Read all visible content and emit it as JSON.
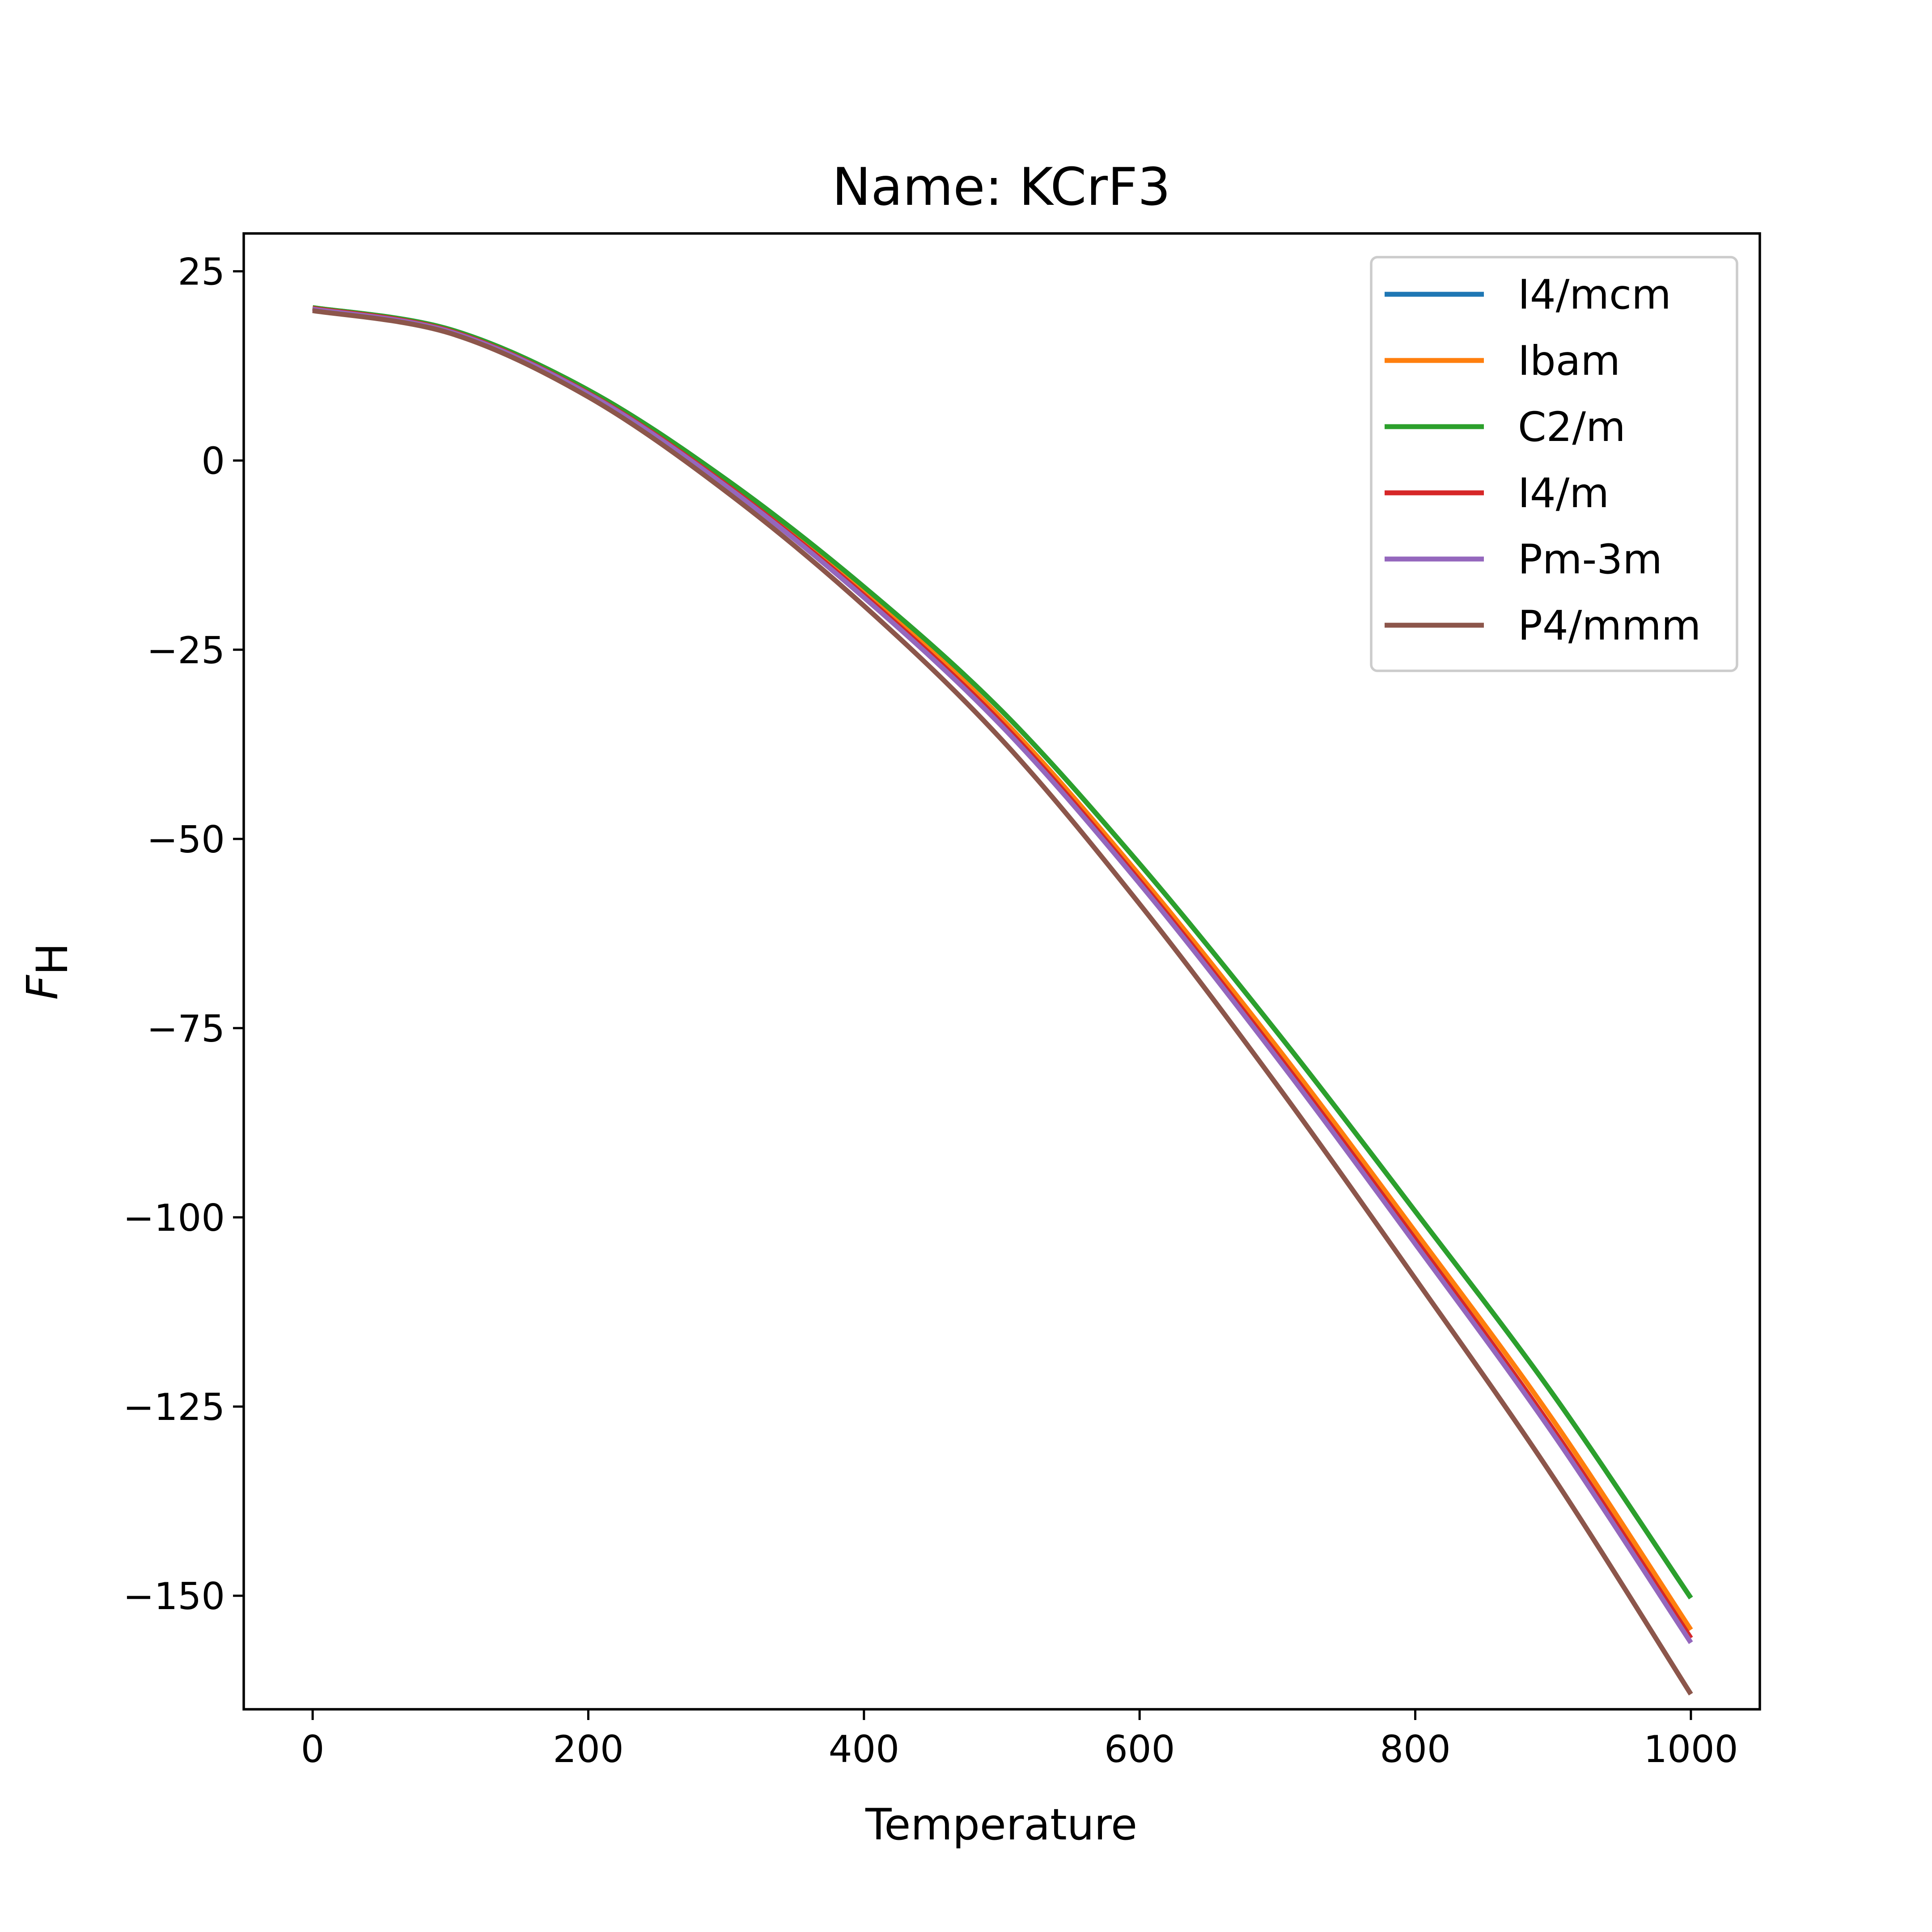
{
  "chart_data": {
    "type": "line",
    "title": "Name: KCrF3",
    "xlabel": "Temperature",
    "ylabel_main": "F",
    "ylabel_sub": "H",
    "xlim": [
      -50,
      1050
    ],
    "ylim": [
      -165,
      30
    ],
    "xticks": [
      0,
      200,
      400,
      600,
      800,
      1000
    ],
    "yticks": [
      25,
      0,
      -25,
      -50,
      -75,
      -100,
      -125,
      -150
    ],
    "xtick_labels": [
      "0",
      "200",
      "400",
      "600",
      "800",
      "1000"
    ],
    "ytick_labels": [
      "25",
      "0",
      "−25",
      "−50",
      "−75",
      "−100",
      "−125",
      "−150"
    ],
    "grid": false,
    "legend_position": "upper right",
    "x": [
      0,
      100,
      200,
      300,
      400,
      500,
      600,
      700,
      800,
      900,
      1000
    ],
    "series": [
      {
        "name": "I4/mcm",
        "color": "#1f77b4",
        "values": [
          20.2,
          17.3,
          9.3,
          -2.5,
          -16.7,
          -33.1,
          -53.3,
          -75.6,
          -99.2,
          -123.4,
          -150.3
        ]
      },
      {
        "name": "Ibam",
        "color": "#ff7f0e",
        "values": [
          20.2,
          17.2,
          9.1,
          -2.9,
          -17.3,
          -34.1,
          -54.8,
          -77.6,
          -101.9,
          -126.8,
          -154.5
        ]
      },
      {
        "name": "C2/m",
        "color": "#2ca02c",
        "values": [
          20.2,
          17.3,
          9.3,
          -2.5,
          -16.7,
          -33.1,
          -53.3,
          -75.6,
          -99.2,
          -123.4,
          -150.3
        ]
      },
      {
        "name": "I4/m",
        "color": "#d62728",
        "values": [
          20.1,
          17.1,
          8.9,
          -3.2,
          -17.8,
          -34.7,
          -55.5,
          -78.5,
          -102.9,
          -128.0,
          -155.6
        ]
      },
      {
        "name": "Pm-3m",
        "color": "#9467bd",
        "values": [
          20.0,
          17.0,
          8.8,
          -3.4,
          -18.1,
          -35.1,
          -55.9,
          -79.0,
          -103.5,
          -128.6,
          -156.2
        ]
      },
      {
        "name": "P4/mmm",
        "color": "#8c564b",
        "values": [
          19.8,
          16.8,
          8.4,
          -4.1,
          -19.2,
          -36.9,
          -58.6,
          -82.6,
          -108.1,
          -134.3,
          -163.0
        ]
      }
    ]
  }
}
